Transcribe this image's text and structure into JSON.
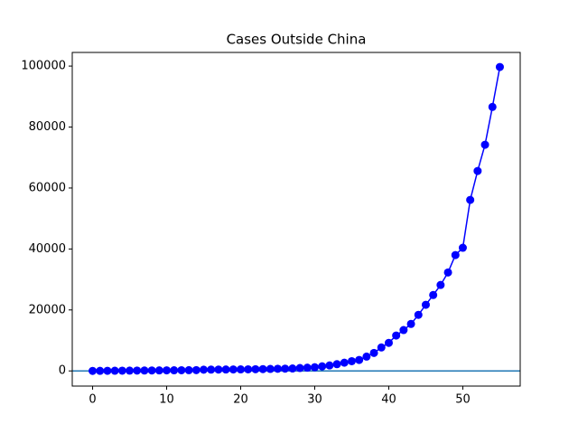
{
  "chart_data": {
    "type": "line",
    "title": "Cases Outside China",
    "x": [
      0,
      1,
      2,
      3,
      4,
      5,
      6,
      7,
      8,
      9,
      10,
      11,
      12,
      13,
      14,
      15,
      16,
      17,
      18,
      19,
      20,
      21,
      22,
      23,
      24,
      25,
      26,
      27,
      28,
      29,
      30,
      31,
      32,
      33,
      34,
      35,
      36,
      37,
      38,
      39,
      40,
      41,
      42,
      43,
      44,
      45,
      46,
      47,
      48,
      49,
      50,
      51,
      52,
      53,
      54,
      55
    ],
    "series": [
      {
        "name": "Cases",
        "color": "#0000ff",
        "values": [
          10,
          20,
          40,
          60,
          80,
          100,
          120,
          130,
          150,
          170,
          190,
          210,
          230,
          250,
          270,
          400,
          420,
          440,
          460,
          480,
          500,
          520,
          560,
          600,
          650,
          700,
          750,
          800,
          950,
          1050,
          1200,
          1500,
          1800,
          2200,
          2700,
          3200,
          3600,
          4700,
          5900,
          7700,
          9200,
          11600,
          13400,
          15400,
          18400,
          21700,
          24900,
          28200,
          32300,
          38000,
          40400,
          56100,
          65600,
          74200,
          86600,
          99700
        ]
      }
    ],
    "hline": 0,
    "hline_color": "#1f77b4",
    "xlim": [
      -2.75,
      57.75
    ],
    "xticks": [
      0,
      10,
      20,
      30,
      40,
      50
    ],
    "ylim": [
      -4975,
      104475
    ],
    "yticks": [
      0,
      20000,
      40000,
      60000,
      80000,
      100000
    ]
  }
}
